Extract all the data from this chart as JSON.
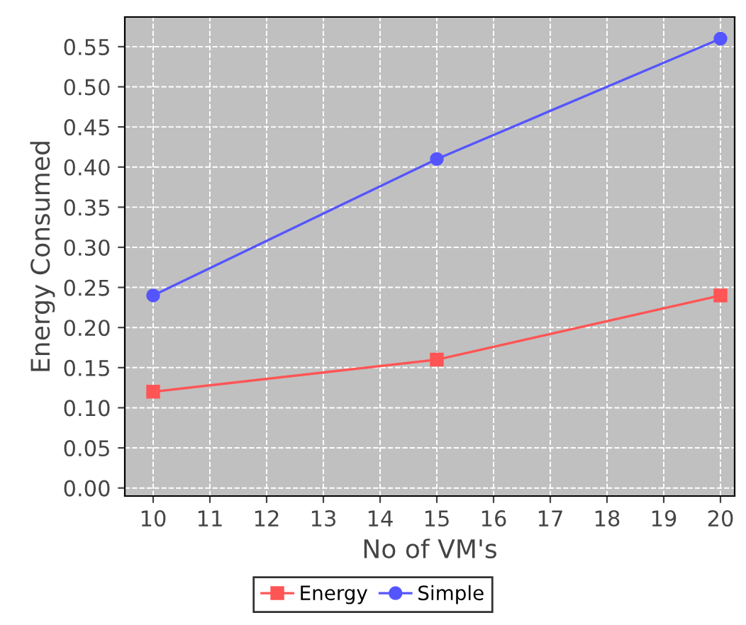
{
  "chart_data": {
    "type": "line",
    "xlabel": "No of VM's",
    "ylabel": "Energy Consumed",
    "x": [
      10,
      15,
      20
    ],
    "series": [
      {
        "name": "Energy",
        "color": "#ff5555",
        "values": [
          0.12,
          0.16,
          0.24
        ],
        "marker": "square"
      },
      {
        "name": "Simple",
        "color": "#5555ff",
        "values": [
          0.24,
          0.41,
          0.56
        ],
        "marker": "circle"
      }
    ],
    "xlim": [
      9.5,
      20.25
    ],
    "xticks": [
      10,
      11,
      12,
      13,
      14,
      15,
      16,
      17,
      18,
      19,
      20
    ],
    "ylim": [
      -0.01,
      0.587
    ],
    "yticks": [
      {
        "value": 0,
        "label": "0.00"
      },
      0.05,
      {
        "value": 0.1,
        "label": "0.10"
      },
      0.15,
      {
        "value": 0.2,
        "label": "0.20"
      },
      0.25,
      {
        "value": 0.3,
        "label": "0.30"
      },
      0.35,
      {
        "value": 0.4,
        "label": "0.40"
      },
      0.45,
      {
        "value": 0.5,
        "label": "0.50"
      },
      0.55
    ],
    "grid": true,
    "legend": "bottom",
    "line_style": "solid"
  }
}
